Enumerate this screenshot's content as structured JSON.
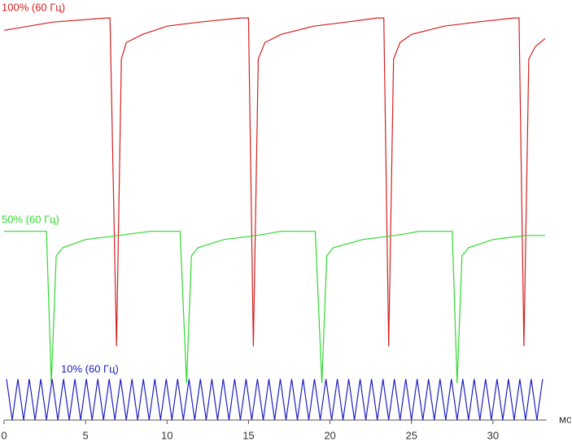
{
  "chart_data": {
    "type": "line",
    "x_label": "мс",
    "xlim": [
      0,
      34.8
    ],
    "xticks": [
      0,
      5,
      10,
      15,
      20,
      25,
      30
    ],
    "ylim": [
      0,
      100
    ],
    "series": [
      {
        "name": "100% (60 Гц)",
        "color": "#d42020",
        "x": [
          0,
          3,
          6.3,
          6.5,
          6.9,
          7.2,
          7.5,
          8.5,
          10,
          12,
          14.5,
          15.0,
          15.3,
          15.6,
          16,
          17,
          19,
          21,
          22.9,
          23.3,
          23.6,
          23.9,
          24.3,
          25,
          27,
          29,
          31.3,
          31.6,
          31.9,
          32.2,
          32.6,
          33.2
        ],
        "values": [
          95,
          97,
          98,
          98,
          18,
          88,
          92,
          94,
          96,
          97,
          98,
          98,
          18,
          88,
          92,
          94,
          96,
          97,
          98,
          98,
          18,
          88,
          92,
          94,
          96,
          97,
          98,
          98,
          18,
          88,
          91,
          93
        ]
      },
      {
        "name": "50% (60 Гц)",
        "color": "#30d830",
        "x": [
          0,
          2.6,
          2.9,
          3.2,
          3.6,
          5,
          7,
          9,
          10.8,
          11.2,
          11.5,
          11.9,
          13.5,
          15.5,
          17,
          19.1,
          19.5,
          19.8,
          20.2,
          22,
          24,
          25.5,
          27.5,
          27.8,
          28.1,
          28.5,
          30,
          32,
          33.2
        ],
        "values": [
          46,
          46,
          9,
          40,
          42,
          44,
          45,
          46,
          46,
          9,
          40,
          42,
          44,
          45,
          46,
          46,
          9,
          40,
          42,
          44,
          45,
          46,
          46,
          9,
          40,
          42,
          44,
          45,
          45
        ]
      },
      {
        "name": "10% (60 Гц)",
        "color": "#2020c0",
        "x": [
          0.15,
          0.5,
          0.85,
          1.2,
          1.55,
          1.9,
          2.25,
          2.6,
          2.95,
          3.3,
          3.65,
          4,
          4.35,
          4.7,
          5.05,
          5.4,
          5.75,
          6.1,
          6.45,
          6.8,
          7.15,
          7.5,
          7.85,
          8.2,
          8.55,
          8.9,
          9.25,
          9.6,
          9.95,
          10.3,
          10.65,
          11,
          11.35,
          11.7,
          12.05,
          12.4,
          12.75,
          13.1,
          13.45,
          13.8,
          14.15,
          14.5,
          14.85,
          15.2,
          15.55,
          15.9,
          16.25,
          16.6,
          16.95,
          17.3,
          17.65,
          18,
          18.35,
          18.7,
          19.05,
          19.4,
          19.75,
          20.1,
          20.45,
          20.8,
          21.15,
          21.5,
          21.85,
          22.2,
          22.55,
          22.9,
          23.25,
          23.6,
          23.95,
          24.3,
          24.65,
          25,
          25.35,
          25.7,
          26.05,
          26.4,
          26.75,
          27.1,
          27.45,
          27.8,
          28.15,
          28.5,
          28.85,
          29.2,
          29.55,
          29.9,
          30.25,
          30.6,
          30.95,
          31.3,
          31.65,
          32,
          32.35,
          32.7,
          33.05
        ],
        "values": [
          10,
          0,
          10,
          0,
          10,
          0,
          10,
          0,
          10,
          0,
          10,
          0,
          10,
          0,
          10,
          0,
          10,
          0,
          10,
          0,
          10,
          0,
          10,
          0,
          10,
          0,
          10,
          0,
          10,
          0,
          10,
          0,
          10,
          0,
          10,
          0,
          10,
          0,
          10,
          0,
          10,
          0,
          10,
          0,
          10,
          0,
          10,
          0,
          10,
          0,
          10,
          0,
          10,
          0,
          10,
          0,
          10,
          0,
          10,
          0,
          10,
          0,
          10,
          0,
          10,
          0,
          10,
          0,
          10,
          0,
          10,
          0,
          10,
          0,
          10,
          0,
          10,
          0,
          10,
          0,
          10,
          0,
          10,
          0,
          10,
          0,
          10,
          0,
          10,
          0,
          10,
          0,
          10,
          0,
          10
        ]
      }
    ]
  }
}
